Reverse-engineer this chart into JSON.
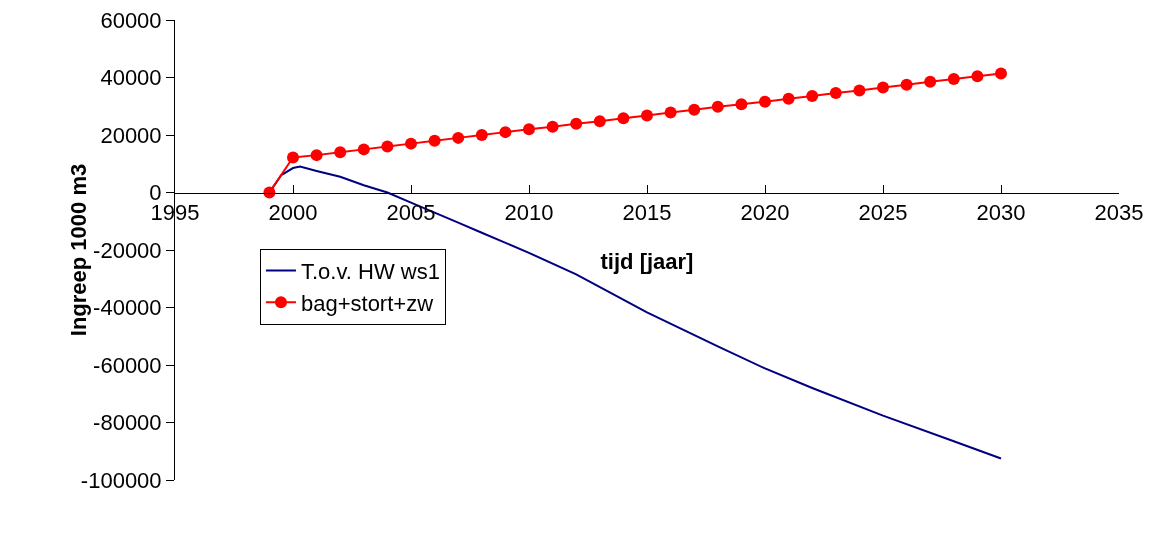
{
  "chart_data": {
    "type": "line",
    "xlabel": "tijd [jaar]",
    "ylabel": "Ingreep 1000 m3",
    "xlim": [
      1995,
      2035
    ],
    "xticks": [
      1995,
      2000,
      2005,
      2010,
      2015,
      2020,
      2025,
      2030,
      2035
    ],
    "ylim": [
      -100000,
      60000
    ],
    "yticks": [
      -100000,
      -80000,
      -60000,
      -40000,
      -20000,
      0,
      20000,
      40000,
      60000
    ],
    "grid": false,
    "legend": "left",
    "line_style": "solid",
    "series": [
      {
        "name": "T.o.v. HW ws1",
        "color": "#000080",
        "marker": "none",
        "x": [
          1999,
          1999.5,
          2000,
          2000.3,
          2001,
          2002,
          2003,
          2004,
          2005,
          2006,
          2007,
          2008,
          2010,
          2012,
          2015,
          2018,
          2020,
          2022,
          2025,
          2028,
          2030
        ],
        "values": [
          0,
          6000,
          8500,
          9000,
          7500,
          5500,
          2500,
          0,
          -3500,
          -7000,
          -10500,
          -14000,
          -21000,
          -28500,
          -41700,
          -53500,
          -61200,
          -68000,
          -77600,
          -86500,
          -92500
        ]
      },
      {
        "name": "bag+stort+zw",
        "color": "#ff0000",
        "marker": "circle",
        "x": [
          1999,
          2000,
          2001,
          2002,
          2003,
          2004,
          2005,
          2006,
          2007,
          2008,
          2009,
          2010,
          2011,
          2012,
          2013,
          2014,
          2015,
          2016,
          2017,
          2018,
          2019,
          2020,
          2021,
          2022,
          2023,
          2024,
          2025,
          2026,
          2027,
          2028,
          2029,
          2030
        ],
        "values": [
          0,
          12200,
          13000,
          14000,
          15000,
          16000,
          17000,
          18000,
          19000,
          20000,
          21000,
          22000,
          22900,
          23900,
          24800,
          25800,
          26800,
          27800,
          28800,
          29800,
          30700,
          31600,
          32600,
          33600,
          34600,
          35500,
          36500,
          37500,
          38500,
          39500,
          40400,
          41400
        ]
      }
    ]
  }
}
